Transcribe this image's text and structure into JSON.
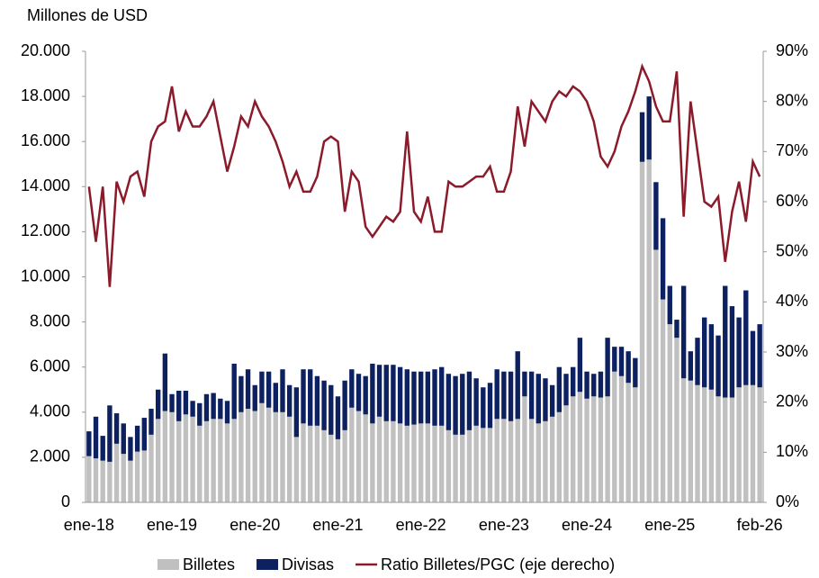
{
  "chart_data": {
    "type": "bar",
    "y_label": "Millones de USD",
    "categories": [
      "ene-18",
      null,
      null,
      null,
      null,
      null,
      null,
      null,
      null,
      null,
      null,
      null,
      "ene-19",
      null,
      null,
      null,
      null,
      null,
      null,
      null,
      null,
      null,
      null,
      null,
      "ene-20",
      null,
      null,
      null,
      null,
      null,
      null,
      null,
      null,
      null,
      null,
      null,
      "ene-21",
      null,
      null,
      null,
      null,
      null,
      null,
      null,
      null,
      null,
      null,
      null,
      "ene-22",
      null,
      null,
      null,
      null,
      null,
      null,
      null,
      null,
      null,
      null,
      null,
      "ene-23",
      null,
      null,
      null,
      null,
      null,
      null,
      null,
      null,
      null,
      null,
      null,
      "ene-24",
      null,
      null,
      null,
      null,
      null,
      null,
      null,
      null,
      null,
      null,
      null,
      "ene-25",
      null,
      null,
      null,
      null,
      null,
      null,
      null,
      null,
      null,
      null,
      null,
      null,
      "feb-26"
    ],
    "series": [
      {
        "name": "Billetes",
        "color": "#c0c0c0",
        "values": [
          2050,
          1950,
          1850,
          1800,
          2600,
          2150,
          1850,
          2250,
          2300,
          3000,
          3700,
          4050,
          4000,
          3600,
          3900,
          3800,
          3400,
          3600,
          3700,
          3700,
          3500,
          3700,
          4000,
          4150,
          4050,
          4400,
          4200,
          4000,
          4000,
          3800,
          2900,
          3500,
          3400,
          3400,
          3200,
          3000,
          2800,
          3200,
          4200,
          4050,
          3900,
          3500,
          3800,
          3600,
          3600,
          3500,
          3400,
          3450,
          3500,
          3500,
          3400,
          3400,
          3200,
          3000,
          3000,
          3200,
          3400,
          3300,
          3300,
          3700,
          3700,
          3600,
          3700,
          4700,
          3700,
          3500,
          3600,
          3800,
          4000,
          4300,
          4700,
          4900,
          4600,
          4700,
          4650,
          4700,
          5800,
          5600,
          5300,
          5100,
          15100,
          15200,
          11200,
          9000,
          7900,
          7300,
          5500,
          5400,
          5200,
          5100,
          5000,
          4700,
          4650,
          4650,
          5100,
          5200,
          5200,
          5100
        ]
      },
      {
        "name": "Divisas",
        "color": "#0d2161",
        "values": [
          1100,
          1850,
          1100,
          2500,
          1350,
          1350,
          1050,
          1150,
          1450,
          1150,
          1300,
          2550,
          800,
          1350,
          1050,
          700,
          1000,
          1200,
          1150,
          900,
          1000,
          2450,
          1600,
          1750,
          1150,
          1400,
          1600,
          1300,
          1900,
          1400,
          2200,
          2400,
          2500,
          2200,
          2200,
          2200,
          1900,
          2200,
          1700,
          1650,
          1700,
          2650,
          2300,
          2500,
          2500,
          2500,
          2500,
          2350,
          2300,
          2300,
          2500,
          2600,
          2500,
          2600,
          2700,
          2600,
          2100,
          1800,
          2000,
          2200,
          2100,
          2200,
          3000,
          1100,
          2100,
          2200,
          1900,
          1400,
          2000,
          1400,
          1300,
          2400,
          1200,
          1000,
          1150,
          2600,
          1100,
          1300,
          1400,
          1300,
          2200,
          2800,
          3000,
          3600,
          1700,
          800,
          4100,
          1300,
          2100,
          3100,
          2900,
          2700,
          4950,
          4050,
          3100,
          4200,
          2400,
          2800
        ]
      },
      {
        "name": "Ratio Billetes/PGC (eje derecho)",
        "color": "#8b1a2b",
        "axis": "y2",
        "values": [
          63,
          52,
          63,
          43,
          64,
          60,
          65,
          66,
          61,
          72,
          75,
          76,
          83,
          74,
          78,
          75,
          75,
          77,
          80,
          73,
          66,
          71,
          77,
          75,
          80,
          77,
          75,
          72,
          68,
          63,
          66,
          62,
          62,
          65,
          72,
          73,
          72,
          58,
          66,
          64,
          55,
          53,
          55,
          57,
          56,
          58,
          74,
          58,
          56,
          61,
          54,
          54,
          64,
          63,
          63,
          64,
          65,
          65,
          67,
          62,
          62,
          66,
          79,
          71,
          80,
          78,
          76,
          80,
          82,
          81,
          83,
          82,
          80,
          76,
          69,
          67,
          70,
          75,
          78,
          82,
          87,
          84,
          79,
          76,
          76,
          86,
          57,
          80,
          70,
          60,
          59,
          61,
          48,
          58,
          64,
          56,
          68,
          65
        ]
      }
    ],
    "ylim": [
      0,
      20000
    ],
    "yticks": [
      0,
      {
        "value": 2000,
        "label": "2.000"
      },
      {
        "value": 4000,
        "label": "4.000"
      },
      {
        "value": 6000,
        "label": "6.000"
      },
      {
        "value": 8000,
        "label": "8.000"
      },
      {
        "value": 10000,
        "label": "10.000"
      },
      {
        "value": 12000,
        "label": "12.000"
      },
      {
        "value": 14000,
        "label": "14.000"
      },
      {
        "value": 16000,
        "label": "16.000"
      },
      {
        "value": 18000,
        "label": "18.000"
      },
      {
        "value": 20000,
        "label": "20.000"
      }
    ],
    "y2lim": [
      0,
      90
    ],
    "y2ticks": [
      {
        "value": 0,
        "label": "0%"
      },
      {
        "value": 10,
        "label": "10%"
      },
      {
        "value": 20,
        "label": "20%"
      },
      {
        "value": 30,
        "label": "30%"
      },
      {
        "value": 40,
        "label": "40%"
      },
      {
        "value": 50,
        "label": "50%"
      },
      {
        "value": 60,
        "label": "60%"
      },
      {
        "value": 70,
        "label": "70%"
      },
      {
        "value": 80,
        "label": "80%"
      },
      {
        "value": 90,
        "label": "90%"
      }
    ],
    "stacked": true,
    "legend": "bottom"
  }
}
